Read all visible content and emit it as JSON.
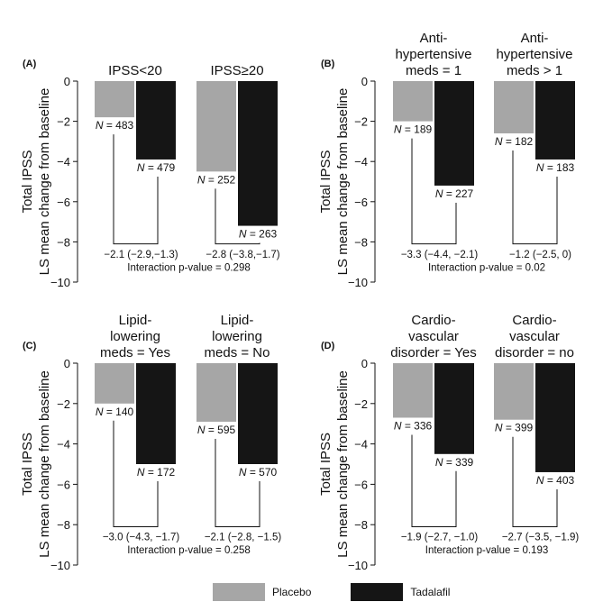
{
  "colors": {
    "placebo": "#a6a6a6",
    "tadalafil": "#151515"
  },
  "legend": {
    "placebo": "Placebo",
    "tadalafil": "Tadalafil"
  },
  "chart_data": [
    {
      "type": "bar",
      "panel_label": "(A)",
      "ylabel": "Total IPSS\nLS mean change from baseline",
      "ylim": [
        -10,
        0
      ],
      "yticks": [
        "0",
        "−2",
        "−4",
        "−6",
        "−8",
        "−10"
      ],
      "categories": [
        "IPSS<20",
        "IPSS≥20"
      ],
      "series": [
        {
          "name": "Placebo",
          "values": [
            -1.8,
            -4.5
          ],
          "n": [
            "483",
            "252"
          ]
        },
        {
          "name": "Tadalafil",
          "values": [
            -3.9,
            -7.2
          ],
          "n": [
            "479",
            "263"
          ]
        }
      ],
      "differences": [
        "−2.1 (−2.9,−1.3)",
        "−2.8 (−3.8,−1.7)"
      ],
      "interaction": "Interaction  p-value = 0.298"
    },
    {
      "type": "bar",
      "panel_label": "(B)",
      "ylabel": "Total IPSS\nLS mean change from baseline",
      "ylim": [
        -10,
        0
      ],
      "yticks": [
        "0",
        "−2",
        "−4",
        "−6",
        "−8",
        "−10"
      ],
      "categories": [
        "Anti-\nhypertensive\nmeds = 1",
        "Anti-\nhypertensive\nmeds > 1"
      ],
      "series": [
        {
          "name": "Placebo",
          "values": [
            -2.0,
            -2.6
          ],
          "n": [
            "189",
            "182"
          ]
        },
        {
          "name": "Tadalafil",
          "values": [
            -5.2,
            -3.9
          ],
          "n": [
            "227",
            "183"
          ]
        }
      ],
      "differences": [
        "−3.3 (−4.4, −2.1)",
        "−1.2 (−2.5, 0)"
      ],
      "interaction": "Interaction  p-value = 0.02"
    },
    {
      "type": "bar",
      "panel_label": "(C)",
      "ylabel": "Total IPSS\nLS mean change from baseline",
      "ylim": [
        -10,
        0
      ],
      "yticks": [
        "0",
        "−2",
        "−4",
        "−6",
        "−8",
        "−10"
      ],
      "categories": [
        "Lipid-\nlowering\nmeds = Yes",
        "Lipid-\nlowering\nmeds = No"
      ],
      "series": [
        {
          "name": "Placebo",
          "values": [
            -2.0,
            -2.9
          ],
          "n": [
            "140",
            "595"
          ]
        },
        {
          "name": "Tadalafil",
          "values": [
            -5.0,
            -5.0
          ],
          "n": [
            "172",
            "570"
          ]
        }
      ],
      "differences": [
        "−3.0 (−4.3, −1.7)",
        "−2.1 (−2.8, −1.5)"
      ],
      "interaction": "Interaction  p-value = 0.258"
    },
    {
      "type": "bar",
      "panel_label": "(D)",
      "ylabel": "Total IPSS\nLS mean change from baseline",
      "ylim": [
        -10,
        0
      ],
      "yticks": [
        "0",
        "−2",
        "−4",
        "−6",
        "−8",
        "−10"
      ],
      "categories": [
        "Cardio-\nvascular\ndisorder = Yes",
        "Cardio-\nvascular\ndisorder = no"
      ],
      "series": [
        {
          "name": "Placebo",
          "values": [
            -2.7,
            -2.8
          ],
          "n": [
            "336",
            "399"
          ]
        },
        {
          "name": "Tadalafil",
          "values": [
            -4.5,
            -5.4
          ],
          "n": [
            "339",
            "403"
          ]
        }
      ],
      "differences": [
        "−1.9 (−2.7, −1.0)",
        "−2.7 (−3.5, −1.9)"
      ],
      "interaction": "Interaction     p-value = 0.193"
    }
  ]
}
